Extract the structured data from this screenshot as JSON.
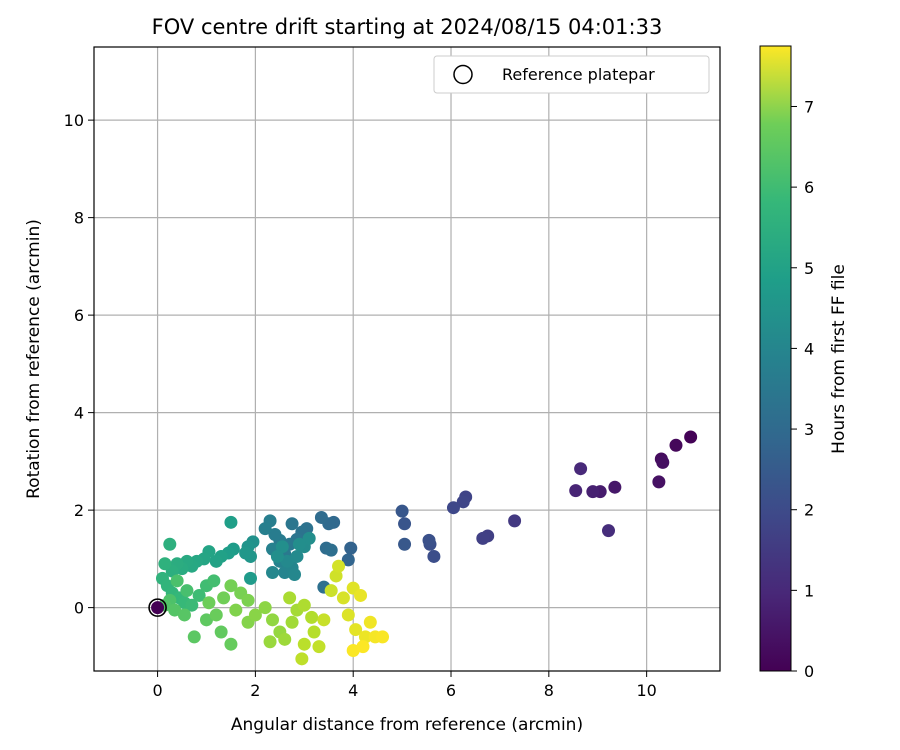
{
  "chart_data": {
    "type": "scatter",
    "title": "FOV centre drift starting at 2024/08/15 04:01:33",
    "xlabel": "Angular distance from reference (arcmin)",
    "ylabel": "Rotation from reference (arcmin)",
    "xlim": [
      -1.3,
      11.5
    ],
    "ylim": [
      -1.3,
      11.5
    ],
    "xticks": [
      "0",
      "2",
      "4",
      "6",
      "8",
      "10"
    ],
    "yticks": [
      "0",
      "2",
      "4",
      "6",
      "8",
      "10"
    ],
    "grid": true,
    "legend": {
      "placement": "upper-right",
      "entries": [
        "Reference platepar"
      ]
    },
    "colorbar": {
      "label": "Hours from first FF file",
      "range": [
        0,
        7.75
      ],
      "ticks": [
        "0",
        "1",
        "2",
        "3",
        "4",
        "5",
        "6",
        "7"
      ],
      "colormap": "viridis"
    },
    "reference_point": {
      "x": 0,
      "y": 0
    },
    "points": [
      [
        10.9,
        3.5,
        0.05
      ],
      [
        10.6,
        3.33,
        0.15
      ],
      [
        10.3,
        3.05,
        0.25
      ],
      [
        10.33,
        2.98,
        0.3
      ],
      [
        10.25,
        2.58,
        0.35
      ],
      [
        9.35,
        2.47,
        0.5
      ],
      [
        9.05,
        2.38,
        0.6
      ],
      [
        8.9,
        2.38,
        0.7
      ],
      [
        8.55,
        2.4,
        0.8
      ],
      [
        8.65,
        2.85,
        0.9
      ],
      [
        9.22,
        1.58,
        1.0
      ],
      [
        7.3,
        1.78,
        1.3
      ],
      [
        6.75,
        1.47,
        1.45
      ],
      [
        6.65,
        1.42,
        1.5
      ],
      [
        6.3,
        2.27,
        1.6
      ],
      [
        6.25,
        2.17,
        1.65
      ],
      [
        6.05,
        2.05,
        1.7
      ],
      [
        5.65,
        1.05,
        1.85
      ],
      [
        5.57,
        1.3,
        1.9
      ],
      [
        5.55,
        1.38,
        1.95
      ],
      [
        5.05,
        1.72,
        2.05
      ],
      [
        5.0,
        1.98,
        2.1
      ],
      [
        5.05,
        1.3,
        2.15
      ],
      [
        3.95,
        1.22,
        2.45
      ],
      [
        3.9,
        0.98,
        2.5
      ],
      [
        3.6,
        1.75,
        2.6
      ],
      [
        3.5,
        1.72,
        2.65
      ],
      [
        3.35,
        1.85,
        2.7
      ],
      [
        3.45,
        1.22,
        2.75
      ],
      [
        3.55,
        1.18,
        2.8
      ],
      [
        3.4,
        0.42,
        2.85
      ],
      [
        3.05,
        1.62,
        2.9
      ],
      [
        2.95,
        1.55,
        2.95
      ],
      [
        2.85,
        1.4,
        3.0
      ],
      [
        2.75,
        1.72,
        3.05
      ],
      [
        2.7,
        1.3,
        3.1
      ],
      [
        2.6,
        1.1,
        3.15
      ],
      [
        2.5,
        1.38,
        3.2
      ],
      [
        2.4,
        1.5,
        3.25
      ],
      [
        2.3,
        1.78,
        3.3
      ],
      [
        2.2,
        1.62,
        3.35
      ],
      [
        2.35,
        1.2,
        3.4
      ],
      [
        2.5,
        0.95,
        3.45
      ],
      [
        2.6,
        0.72,
        3.5
      ],
      [
        2.75,
        0.82,
        3.55
      ],
      [
        2.8,
        0.68,
        3.6
      ],
      [
        2.35,
        0.72,
        3.6
      ],
      [
        2.65,
        0.95,
        3.65
      ],
      [
        2.85,
        1.05,
        3.7
      ],
      [
        3.0,
        1.25,
        3.75
      ],
      [
        3.1,
        1.42,
        3.8
      ],
      [
        2.9,
        1.3,
        3.8
      ],
      [
        2.55,
        1.25,
        3.85
      ],
      [
        2.45,
        1.05,
        3.85
      ],
      [
        1.95,
        1.35,
        3.9
      ],
      [
        1.85,
        1.25,
        4.0
      ],
      [
        1.9,
        1.05,
        4.05
      ],
      [
        1.8,
        1.12,
        4.1
      ],
      [
        1.9,
        0.6,
        4.2
      ],
      [
        1.55,
        1.2,
        4.25
      ],
      [
        1.45,
        1.12,
        4.3
      ],
      [
        1.5,
        1.75,
        4.35
      ],
      [
        1.3,
        1.05,
        4.4
      ],
      [
        1.2,
        0.95,
        4.45
      ],
      [
        1.05,
        1.15,
        4.5
      ],
      [
        0.95,
        1.0,
        4.55
      ],
      [
        0.8,
        0.95,
        4.6
      ],
      [
        0.7,
        0.85,
        4.65
      ],
      [
        0.6,
        0.95,
        4.7
      ],
      [
        0.5,
        0.8,
        4.75
      ],
      [
        0.4,
        0.9,
        4.8
      ],
      [
        0.3,
        0.75,
        4.85
      ],
      [
        0.25,
        1.3,
        4.9
      ],
      [
        0.15,
        0.9,
        4.95
      ],
      [
        0.1,
        0.6,
        5.0
      ],
      [
        0.2,
        0.45,
        5.05
      ],
      [
        0.3,
        0.3,
        5.1
      ],
      [
        0.45,
        0.2,
        5.15
      ],
      [
        0.55,
        0.1,
        5.2
      ],
      [
        0.7,
        0.05,
        5.25
      ],
      [
        0.85,
        0.25,
        5.3
      ],
      [
        1.0,
        0.45,
        5.35
      ],
      [
        1.15,
        0.55,
        5.4
      ],
      [
        0.6,
        0.35,
        5.45
      ],
      [
        0.4,
        0.55,
        5.5
      ],
      [
        0.25,
        0.15,
        5.55
      ],
      [
        0.15,
        0.05,
        5.6
      ],
      [
        0.35,
        -0.05,
        5.65
      ],
      [
        0.55,
        -0.15,
        5.7
      ],
      [
        0.75,
        -0.6,
        5.75
      ],
      [
        1.0,
        -0.25,
        5.8
      ],
      [
        1.3,
        -0.5,
        5.85
      ],
      [
        1.5,
        -0.75,
        5.9
      ],
      [
        1.2,
        -0.15,
        5.95
      ],
      [
        1.05,
        0.1,
        6.0
      ],
      [
        1.35,
        0.2,
        6.05
      ],
      [
        1.5,
        0.45,
        6.1
      ],
      [
        1.7,
        0.3,
        6.15
      ],
      [
        1.85,
        0.15,
        6.2
      ],
      [
        1.6,
        -0.05,
        6.25
      ],
      [
        1.85,
        -0.3,
        6.3
      ],
      [
        2.0,
        -0.15,
        6.35
      ],
      [
        2.2,
        0.0,
        6.4
      ],
      [
        2.35,
        -0.25,
        6.45
      ],
      [
        2.5,
        -0.5,
        6.5
      ],
      [
        2.3,
        -0.7,
        6.55
      ],
      [
        2.6,
        -0.65,
        6.6
      ],
      [
        2.75,
        -0.3,
        6.65
      ],
      [
        2.85,
        -0.05,
        6.7
      ],
      [
        2.7,
        0.2,
        6.75
      ],
      [
        3.0,
        0.05,
        6.8
      ],
      [
        3.15,
        -0.2,
        6.85
      ],
      [
        3.2,
        -0.5,
        6.9
      ],
      [
        3.0,
        -0.75,
        6.95
      ],
      [
        2.95,
        -1.05,
        7.0
      ],
      [
        3.3,
        -0.8,
        7.05
      ],
      [
        3.4,
        -0.25,
        7.1
      ],
      [
        3.55,
        0.35,
        7.15
      ],
      [
        3.65,
        0.65,
        7.2
      ],
      [
        3.7,
        0.85,
        7.25
      ],
      [
        3.8,
        0.2,
        7.3
      ],
      [
        3.9,
        -0.15,
        7.35
      ],
      [
        4.0,
        0.4,
        7.4
      ],
      [
        4.05,
        -0.45,
        7.45
      ],
      [
        4.15,
        0.25,
        7.5
      ],
      [
        4.25,
        -0.6,
        7.55
      ],
      [
        4.35,
        -0.3,
        7.6
      ],
      [
        4.45,
        -0.6,
        7.65
      ],
      [
        4.6,
        -0.6,
        7.7
      ],
      [
        4.0,
        -0.88,
        7.72
      ],
      [
        4.2,
        -0.8,
        7.74
      ]
    ]
  }
}
